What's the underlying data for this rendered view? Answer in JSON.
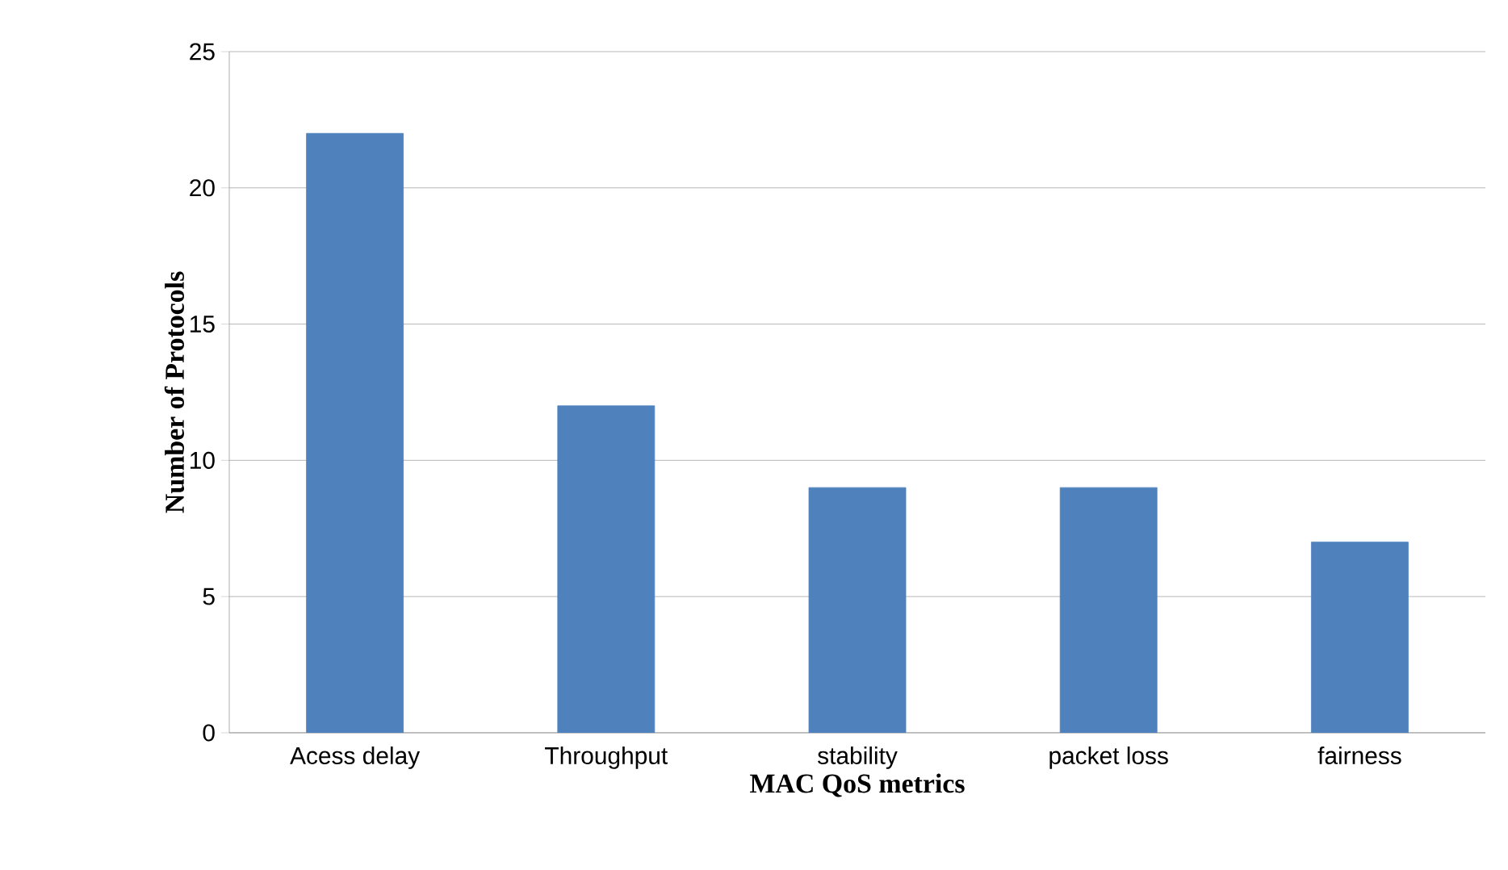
{
  "chart_data": {
    "type": "bar",
    "xlabel": "MAC QoS metrics",
    "ylabel": "Number of Protocols",
    "categories": [
      "Acess delay",
      "Throughput",
      "stability",
      "packet loss",
      "fairness"
    ],
    "values": [
      22,
      12,
      9,
      9,
      7
    ],
    "color": "#4f81bd",
    "ylim": [
      0,
      25
    ],
    "yticks": [
      0,
      5,
      10,
      15,
      20,
      25
    ],
    "grid": "y"
  }
}
